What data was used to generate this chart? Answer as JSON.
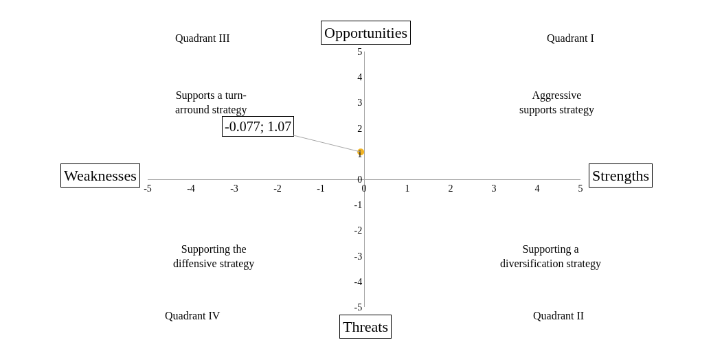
{
  "chart_data": {
    "type": "scatter",
    "x": [
      -0.077
    ],
    "series": [
      {
        "color": "#f0b323",
        "values": [
          1.07
        ],
        "value_labels": [
          "-0.077; 1.07"
        ]
      }
    ],
    "xlim": [
      -5,
      5
    ],
    "ylim": [
      -5,
      5
    ],
    "xticks": [
      -5,
      -4,
      -3,
      -2,
      -1,
      0,
      1,
      2,
      3,
      4,
      5
    ],
    "yticks": [
      -5,
      -4,
      -3,
      -2,
      -1,
      0,
      1,
      2,
      3,
      4,
      5
    ],
    "legend": false,
    "marker": "circle",
    "annotations": [
      "Opportunities",
      "Threats",
      "Weaknesses",
      "Strengths",
      "Quadrant III",
      "Supports a turn-\narround strategy",
      "Quadrant I",
      "Aggressive\nsupports strategy",
      "Supporting the\ndiffensive strategy",
      "Quadrant IV",
      "Supporting a\ndiversification strategy",
      "Quadrant II"
    ]
  }
}
